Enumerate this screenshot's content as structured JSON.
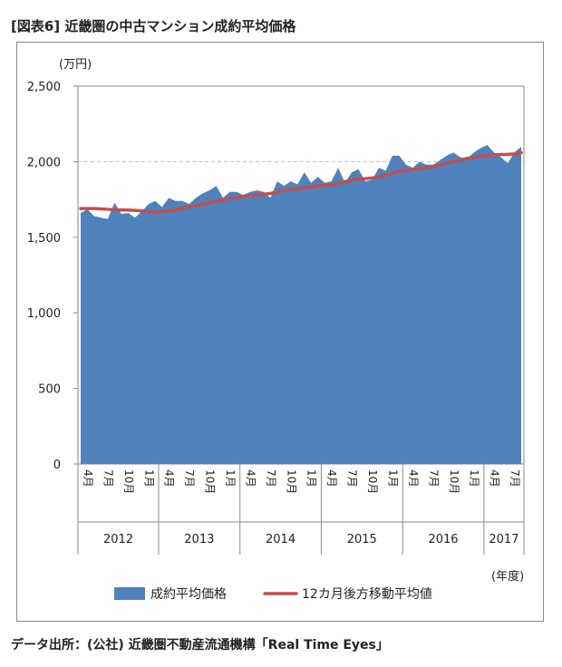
{
  "figure_title": "[図表6] 近畿圏の中古マンション成約平均価格",
  "source": "データ出所：(公社) 近畿圏不動産流通機構「Real Time Eyes」",
  "chart_data": {
    "type": "area",
    "title": "",
    "y_unit": "(万円)",
    "x_unit": "(年度)",
    "ylim": [
      0,
      2500
    ],
    "y_ticks": [
      "0",
      "500",
      "1,000",
      "1,500",
      "2,000",
      "2,500"
    ],
    "grid": "dashed line at 2,000 only",
    "x": [
      "2012-04",
      "2012-05",
      "2012-06",
      "2012-07",
      "2012-08",
      "2012-09",
      "2012-10",
      "2012-11",
      "2012-12",
      "2013-01",
      "2013-02",
      "2013-03",
      "2013-04",
      "2013-05",
      "2013-06",
      "2013-07",
      "2013-08",
      "2013-09",
      "2013-10",
      "2013-11",
      "2013-12",
      "2014-01",
      "2014-02",
      "2014-03",
      "2014-04",
      "2014-05",
      "2014-06",
      "2014-07",
      "2014-08",
      "2014-09",
      "2014-10",
      "2014-11",
      "2014-12",
      "2015-01",
      "2015-02",
      "2015-03",
      "2015-04",
      "2015-05",
      "2015-06",
      "2015-07",
      "2015-08",
      "2015-09",
      "2015-10",
      "2015-11",
      "2015-12",
      "2016-01",
      "2016-02",
      "2016-03",
      "2016-04",
      "2016-05",
      "2016-06",
      "2016-07",
      "2016-08",
      "2016-09",
      "2016-10",
      "2016-11",
      "2016-12",
      "2017-01",
      "2017-02",
      "2017-03",
      "2017-04",
      "2017-05",
      "2017-06",
      "2017-07",
      "2017-08",
      "2017-09"
    ],
    "month_tick_labels": [
      "4月",
      "7月",
      "10月",
      "1月"
    ],
    "fiscal_years": [
      "2012",
      "2013",
      "2014",
      "2015",
      "2016",
      "2017"
    ],
    "series": [
      {
        "name": "成約平均価格",
        "kind": "area",
        "color": "#4f81bd",
        "values": [
          1660,
          1685,
          1640,
          1630,
          1620,
          1730,
          1655,
          1660,
          1630,
          1670,
          1720,
          1740,
          1700,
          1760,
          1740,
          1740,
          1720,
          1760,
          1790,
          1810,
          1840,
          1760,
          1800,
          1800,
          1780,
          1800,
          1810,
          1800,
          1760,
          1870,
          1840,
          1870,
          1850,
          1930,
          1860,
          1900,
          1860,
          1870,
          1960,
          1860,
          1930,
          1950,
          1870,
          1880,
          1960,
          1940,
          2040,
          2040,
          1980,
          1960,
          2000,
          1980,
          1980,
          2010,
          2040,
          2060,
          2030,
          2020,
          2060,
          2090,
          2110,
          2060,
          2030,
          1990,
          2060,
          2100
        ]
      },
      {
        "name": "12カ月後方移動平均値",
        "kind": "line",
        "color": "#c0504d",
        "values": [
          1690,
          1690,
          1690,
          1688,
          1685,
          1682,
          1681,
          1680,
          1678,
          1674,
          1670,
          1668,
          1669,
          1674,
          1680,
          1690,
          1700,
          1710,
          1720,
          1728,
          1738,
          1745,
          1756,
          1763,
          1770,
          1775,
          1780,
          1785,
          1790,
          1800,
          1808,
          1815,
          1820,
          1826,
          1832,
          1840,
          1843,
          1847,
          1856,
          1868,
          1880,
          1885,
          1888,
          1892,
          1900,
          1910,
          1922,
          1938,
          1942,
          1948,
          1955,
          1960,
          1968,
          1975,
          1990,
          2000,
          2010,
          2022,
          2028,
          2036,
          2040,
          2045,
          2047,
          2048,
          2052,
          2060
        ]
      }
    ],
    "legend_position": "bottom"
  }
}
